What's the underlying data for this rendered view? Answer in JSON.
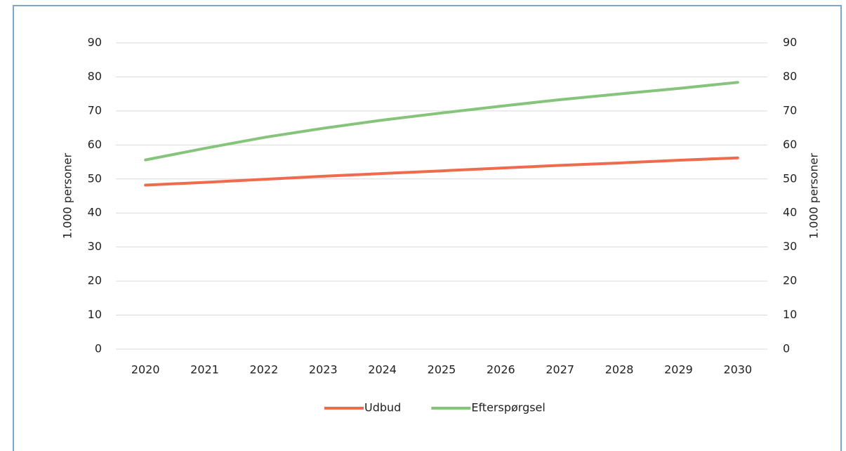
{
  "chart_data": {
    "type": "line",
    "categories": [
      "2020",
      "2021",
      "2022",
      "2023",
      "2024",
      "2025",
      "2026",
      "2027",
      "2028",
      "2029",
      "2030"
    ],
    "series": [
      {
        "name": "Udbud",
        "color": "#ee6b4d",
        "values": [
          48.2,
          49.0,
          49.9,
          50.8,
          51.6,
          52.4,
          53.2,
          54.0,
          54.7,
          55.5,
          56.2
        ]
      },
      {
        "name": "Efterspørgsel",
        "color": "#86c47c",
        "values": [
          55.6,
          59.0,
          62.2,
          64.9,
          67.3,
          69.4,
          71.4,
          73.3,
          75.0,
          76.6,
          78.4
        ]
      }
    ],
    "ylabel": "1.000  personer",
    "y2label": "1.000 personer",
    "ylim": [
      0,
      90
    ],
    "yticks": [
      0,
      10,
      20,
      30,
      40,
      50,
      60,
      70,
      80,
      90
    ],
    "y2lim": [
      0,
      90
    ],
    "y2ticks": [
      0,
      10,
      20,
      30,
      40,
      50,
      60,
      70,
      80,
      90
    ],
    "grid": true,
    "legend": "bottom"
  }
}
